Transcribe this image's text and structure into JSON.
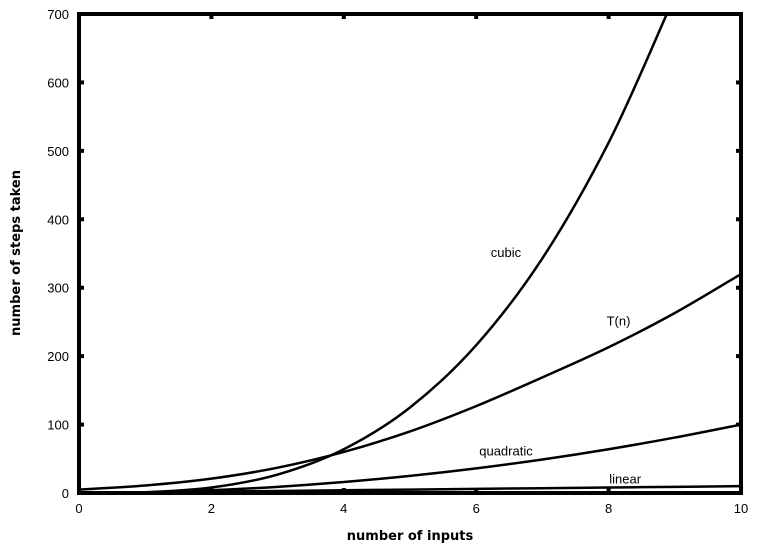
{
  "chart_data": {
    "type": "line",
    "title": "",
    "xlabel": "number of inputs",
    "ylabel": "number of steps taken",
    "xlim": [
      0,
      10
    ],
    "ylim": [
      0,
      700
    ],
    "xticks": [
      0,
      2,
      4,
      6,
      8,
      10
    ],
    "yticks": [
      0,
      100,
      200,
      300,
      400,
      500,
      600,
      700
    ],
    "xtick_labels": [
      "0",
      "2",
      "4",
      "6",
      "8",
      "10"
    ],
    "ytick_labels": [
      "0",
      "100",
      "200",
      "300",
      "400",
      "500",
      "600",
      "700"
    ],
    "grid": false,
    "legend": "none",
    "line_color": "#000000",
    "series": [
      {
        "name": "cubic",
        "x": [
          0,
          1,
          2,
          3,
          4,
          5,
          6,
          7,
          8,
          8.88
        ],
        "values": [
          0,
          1,
          8,
          27,
          64,
          125,
          216,
          343,
          512,
          700
        ]
      },
      {
        "name": "T(n)",
        "x": [
          0,
          1,
          2,
          3,
          4,
          5,
          6,
          7,
          8,
          9,
          10
        ],
        "values": [
          5,
          11,
          21,
          37,
          60,
          90,
          127,
          169,
          213,
          263,
          320
        ]
      },
      {
        "name": "quadratic",
        "x": [
          0,
          1,
          2,
          3,
          4,
          5,
          6,
          7,
          8,
          9,
          10
        ],
        "values": [
          0,
          1,
          4,
          9,
          16,
          25,
          36,
          49,
          64,
          81,
          100
        ]
      },
      {
        "name": "linear",
        "x": [
          0,
          1,
          2,
          3,
          4,
          5,
          6,
          7,
          8,
          9,
          10
        ],
        "values": [
          0,
          1,
          2,
          3,
          4,
          5,
          6,
          7,
          8,
          9,
          10
        ]
      }
    ]
  }
}
